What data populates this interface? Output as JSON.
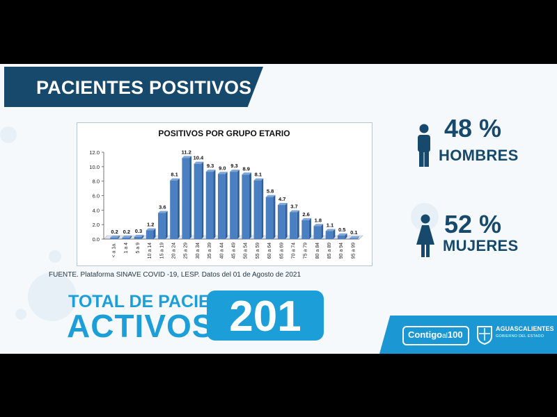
{
  "header": {
    "title": "PACIENTES POSITIVOS"
  },
  "chart_data": {
    "type": "bar",
    "title": "POSITIVOS POR GRUPO ETARIO",
    "categories": [
      "< a 1a.",
      "1 a 4",
      "5 a 9",
      "10 a 14",
      "15 a 19",
      "20 a 24",
      "25 a 29",
      "30 a 34",
      "35 a 39",
      "40 a 44",
      "45 a 49",
      "50 a 54",
      "55 a 59",
      "60 a 64",
      "65 a 69",
      "70 a 74",
      "75 a 79",
      "80 a 84",
      "85 a 89",
      "90 a 94",
      "95 a 99"
    ],
    "values": [
      0.2,
      0.2,
      0.3,
      1.2,
      3.6,
      8.1,
      11.2,
      10.4,
      9.3,
      9.0,
      9.3,
      8.9,
      8.1,
      5.8,
      4.7,
      3.7,
      2.6,
      1.8,
      1.1,
      0.5,
      0.1
    ],
    "value_labels": [
      "0.2",
      "0.2",
      "0.3",
      "1.2",
      "3.6",
      "8.1",
      "11.2",
      "10.4",
      "9.3",
      "9.0",
      "9.3",
      "8.9",
      "8.1",
      "5.8",
      "4.7",
      "3.7",
      "2.6",
      "1.8",
      "1.1",
      "0.5",
      "0.1"
    ],
    "ylim": [
      0,
      12
    ],
    "yticks": [
      "0.0",
      "2.0",
      "4.0",
      "6.0",
      "8.0",
      "10.0",
      "12.0"
    ],
    "xlabel": "",
    "ylabel": "",
    "grid": false,
    "bar_color": "#4a7fc1"
  },
  "source": "FUENTE. Plataforma SINAVE COVID -19, LESP. Datos del 01 de Agosto de 2021",
  "stats": {
    "men": {
      "percent": "48 %",
      "label": "HOMBRES",
      "icon": "man-icon"
    },
    "women": {
      "percent": "52 %",
      "label": "MUJERES",
      "icon": "woman-icon"
    }
  },
  "total": {
    "line1": "TOTAL DE PACIENTES",
    "line2": "ACTIVOS",
    "value": "201"
  },
  "footer": {
    "campaign_prefix": "Contigo",
    "campaign_mid": "al",
    "campaign_suffix": "100",
    "gov_name": "AGUASCALIENTES",
    "gov_sub": "GOBIERNO DEL ESTADO",
    "seal_icon": "state-seal-icon"
  },
  "colors": {
    "navy": "#17496c",
    "accent": "#1c9fd9",
    "slide_bg": "#f6f9fb"
  }
}
